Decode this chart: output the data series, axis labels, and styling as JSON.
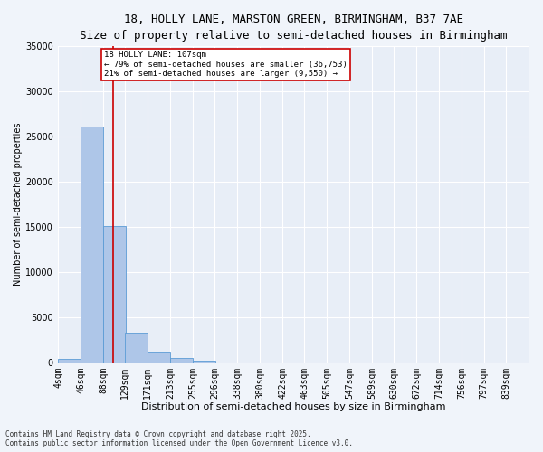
{
  "title_line1": "18, HOLLY LANE, MARSTON GREEN, BIRMINGHAM, B37 7AE",
  "title_line2": "Size of property relative to semi-detached houses in Birmingham",
  "xlabel": "Distribution of semi-detached houses by size in Birmingham",
  "ylabel": "Number of semi-detached properties",
  "footnote": "Contains HM Land Registry data © Crown copyright and database right 2025.\nContains public sector information licensed under the Open Government Licence v3.0.",
  "bar_color": "#aec6e8",
  "bar_edge_color": "#5b9bd5",
  "bg_color": "#e8eef7",
  "grid_color": "#ffffff",
  "vline_color": "#cc0000",
  "vline_x": 107,
  "annotation_text": "18 HOLLY LANE: 107sqm\n← 79% of semi-detached houses are smaller (36,753)\n21% of semi-detached houses are larger (9,550) →",
  "annotation_box_color": "#cc0000",
  "categories": [
    "4sqm",
    "46sqm",
    "88sqm",
    "129sqm",
    "171sqm",
    "213sqm",
    "255sqm",
    "296sqm",
    "338sqm",
    "380sqm",
    "422sqm",
    "463sqm",
    "505sqm",
    "547sqm",
    "589sqm",
    "630sqm",
    "672sqm",
    "714sqm",
    "756sqm",
    "797sqm",
    "839sqm"
  ],
  "bin_edges": [
    4,
    46,
    88,
    129,
    171,
    213,
    255,
    296,
    338,
    380,
    422,
    463,
    505,
    547,
    589,
    630,
    672,
    714,
    756,
    797,
    839
  ],
  "values": [
    350,
    26100,
    15100,
    3300,
    1200,
    450,
    200,
    0,
    0,
    0,
    0,
    0,
    0,
    0,
    0,
    0,
    0,
    0,
    0,
    0,
    0
  ],
  "ylim": [
    0,
    35000
  ],
  "yticks": [
    0,
    5000,
    10000,
    15000,
    20000,
    25000,
    30000,
    35000
  ],
  "fig_bg_color": "#f0f4fa",
  "title1_fontsize": 9,
  "title2_fontsize": 8,
  "xlabel_fontsize": 8,
  "ylabel_fontsize": 7,
  "tick_fontsize": 7,
  "annot_fontsize": 6.5,
  "footnote_fontsize": 5.5
}
